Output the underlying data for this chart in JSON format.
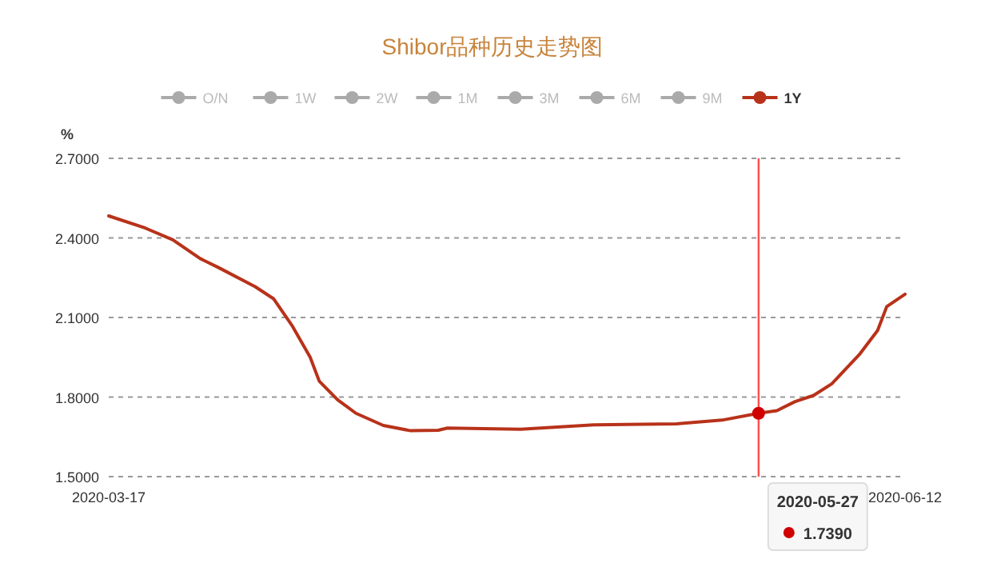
{
  "chart_data": {
    "type": "line",
    "title": "Shibor品种历史走势图",
    "ylabel": "%",
    "xlim": [
      "2020-03-17",
      "2020-06-12"
    ],
    "xticks": [
      "2020-03-17",
      "2020-06-12"
    ],
    "ylim": [
      1.5,
      2.7
    ],
    "yticks": [
      {
        "value": 1.5,
        "label": "1.5000"
      },
      {
        "value": 1.8,
        "label": "1.8000"
      },
      {
        "value": 2.1,
        "label": "2.1000"
      },
      {
        "value": 2.4,
        "label": "2.4000"
      },
      {
        "value": 2.7,
        "label": "2.7000"
      }
    ],
    "grid": "y",
    "legend": "top",
    "marker": "none",
    "series": [
      {
        "name": "O/N",
        "color": "#aaaaaa"
      },
      {
        "name": "1W",
        "color": "#aaaaaa"
      },
      {
        "name": "2W",
        "color": "#aaaaaa"
      },
      {
        "name": "1M",
        "color": "#aaaaaa"
      },
      {
        "name": "3M",
        "color": "#aaaaaa"
      },
      {
        "name": "6M",
        "color": "#aaaaaa"
      },
      {
        "name": "9M",
        "color": "#aaaaaa"
      },
      {
        "name": "1Y",
        "color": "#b8321a",
        "x": [
          "2020-03-17",
          "2020-03-21",
          "2020-03-24",
          "2020-03-27",
          "2020-03-29",
          "2020-04-02",
          "2020-04-04",
          "2020-04-06",
          "2020-04-08",
          "2020-04-09",
          "2020-04-11",
          "2020-04-13",
          "2020-04-16",
          "2020-04-19",
          "2020-04-22",
          "2020-04-23",
          "2020-05-01",
          "2020-05-09",
          "2020-05-18",
          "2020-05-23",
          "2020-05-27",
          "2020-05-29",
          "2020-05-31",
          "2020-06-02",
          "2020-06-04",
          "2020-06-07",
          "2020-06-09",
          "2020-06-10",
          "2020-06-12"
        ],
        "values": [
          2.483,
          2.437,
          2.393,
          2.322,
          2.288,
          2.216,
          2.171,
          2.071,
          1.951,
          1.86,
          1.79,
          1.739,
          1.693,
          1.673,
          1.675,
          1.683,
          1.679,
          1.695,
          1.699,
          1.713,
          1.739,
          1.749,
          1.783,
          1.806,
          1.85,
          1.96,
          2.051,
          2.141,
          2.188
        ]
      }
    ],
    "ref_lines": [
      {
        "axis": "x",
        "value": "2020-05-27",
        "label": "2020-05-27",
        "color": "#ff4d4d"
      }
    ],
    "annotations": [
      "1.7390"
    ]
  }
}
